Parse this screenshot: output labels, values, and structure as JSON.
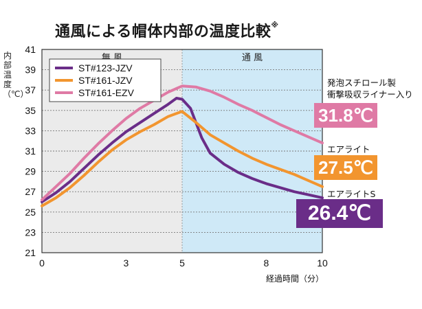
{
  "title": "通風による帽体内部の温度比較",
  "title_mark": "※",
  "chart_data": {
    "type": "line",
    "title": "通風による帽体内部の温度比較",
    "xlabel": "経過時間（分）",
    "ylabel": "内部温度（℃）",
    "xlim": [
      0,
      10
    ],
    "ylim": [
      21,
      41
    ],
    "x_ticks": [
      "0",
      "3",
      "5",
      "8",
      "10"
    ],
    "y_ticks": [
      "41",
      "39",
      "37",
      "35",
      "33",
      "31",
      "29",
      "27",
      "25",
      "23",
      "21"
    ],
    "grid": true,
    "regions": [
      {
        "label": "無 風",
        "from": 0,
        "to": 5,
        "color": "#ebebeb"
      },
      {
        "label": "通 風",
        "from": 5,
        "to": 10,
        "color": "#cfe9f7"
      }
    ],
    "legend_position": "top-left",
    "series": [
      {
        "name": "ST#123-JZV",
        "color": "#6a2d88",
        "x": [
          0,
          0.5,
          1,
          1.5,
          2,
          2.5,
          3,
          3.5,
          4,
          4.5,
          4.8,
          5,
          5.3,
          5.7,
          6,
          6.5,
          7,
          7.5,
          8,
          8.5,
          9,
          9.5,
          10
        ],
        "y": [
          26.0,
          26.9,
          28.0,
          29.3,
          30.6,
          31.8,
          32.9,
          33.8,
          34.7,
          35.6,
          36.2,
          36.1,
          35.2,
          32.3,
          30.8,
          29.7,
          28.9,
          28.3,
          27.8,
          27.4,
          27.0,
          26.7,
          26.4
        ]
      },
      {
        "name": "ST#161-JZV",
        "color": "#f2952f",
        "x": [
          0,
          0.5,
          1,
          1.5,
          2,
          2.5,
          3,
          3.5,
          4,
          4.5,
          5,
          5.5,
          6,
          6.5,
          7,
          7.5,
          8,
          8.5,
          9,
          9.5,
          10
        ],
        "y": [
          25.6,
          26.4,
          27.4,
          28.6,
          29.9,
          31.1,
          32.1,
          32.9,
          33.6,
          34.4,
          34.9,
          33.8,
          32.6,
          31.8,
          31.0,
          30.3,
          29.7,
          29.2,
          28.7,
          28.1,
          27.5
        ]
      },
      {
        "name": "ST#161-EZV",
        "color": "#df7aa5",
        "x": [
          0,
          0.5,
          1,
          1.5,
          2,
          2.5,
          3,
          3.5,
          4,
          4.5,
          5,
          5.5,
          6,
          6.5,
          7,
          7.5,
          8,
          8.5,
          9,
          9.5,
          10
        ],
        "y": [
          26.2,
          27.5,
          28.8,
          30.3,
          31.7,
          33.0,
          34.2,
          35.2,
          36.0,
          36.8,
          37.4,
          37.3,
          36.9,
          36.3,
          35.6,
          35.0,
          34.3,
          33.6,
          33.0,
          32.4,
          31.8
        ]
      }
    ]
  },
  "annotations": [
    {
      "label": "発泡スチロール製",
      "label2": "衝撃吸収ライナー入り",
      "value": "31.8℃",
      "color": "#df7aa5"
    },
    {
      "label": "エアライト",
      "value": "27.5℃",
      "color": "#f2952f"
    },
    {
      "label": "エアライトS",
      "value": "26.4℃",
      "color": "#6a2d88"
    }
  ]
}
